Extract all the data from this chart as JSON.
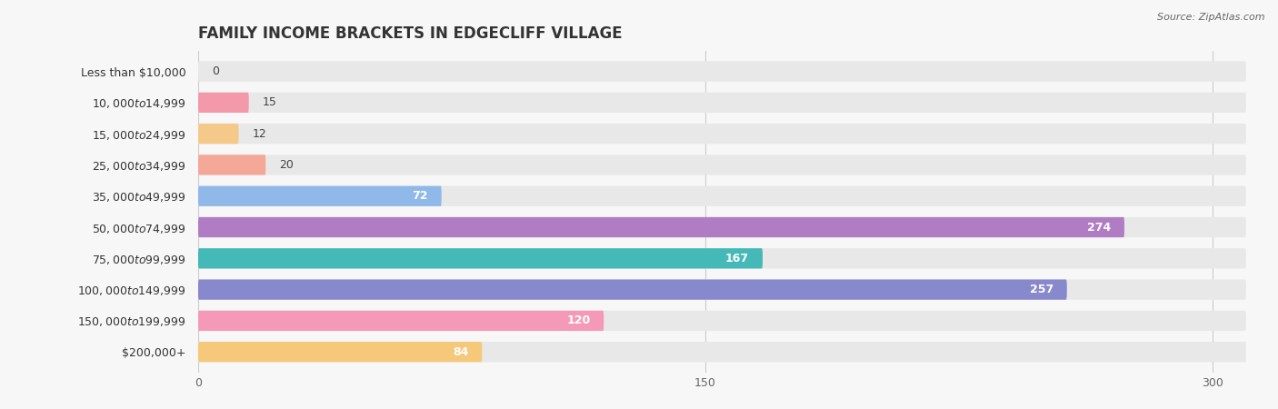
{
  "title": "FAMILY INCOME BRACKETS IN EDGECLIFF VILLAGE",
  "source": "Source: ZipAtlas.com",
  "categories": [
    "Less than $10,000",
    "$10,000 to $14,999",
    "$15,000 to $24,999",
    "$25,000 to $34,999",
    "$35,000 to $49,999",
    "$50,000 to $74,999",
    "$75,000 to $99,999",
    "$100,000 to $149,999",
    "$150,000 to $199,999",
    "$200,000+"
  ],
  "values": [
    0,
    15,
    12,
    20,
    72,
    274,
    167,
    257,
    120,
    84
  ],
  "bar_colors": [
    "#aaaadd",
    "#f499aa",
    "#f5c98a",
    "#f4a898",
    "#90b8e8",
    "#b07dc4",
    "#45b8b8",
    "#8888cc",
    "#f49ab8",
    "#f5c87a"
  ],
  "xlim_max": 310,
  "xticks": [
    0,
    150,
    300
  ],
  "background_color": "#f7f7f7",
  "bar_bg_color": "#e8e8e8",
  "title_fontsize": 12,
  "label_fontsize": 9,
  "value_fontsize": 9,
  "bar_height": 0.65,
  "value_threshold": 40
}
